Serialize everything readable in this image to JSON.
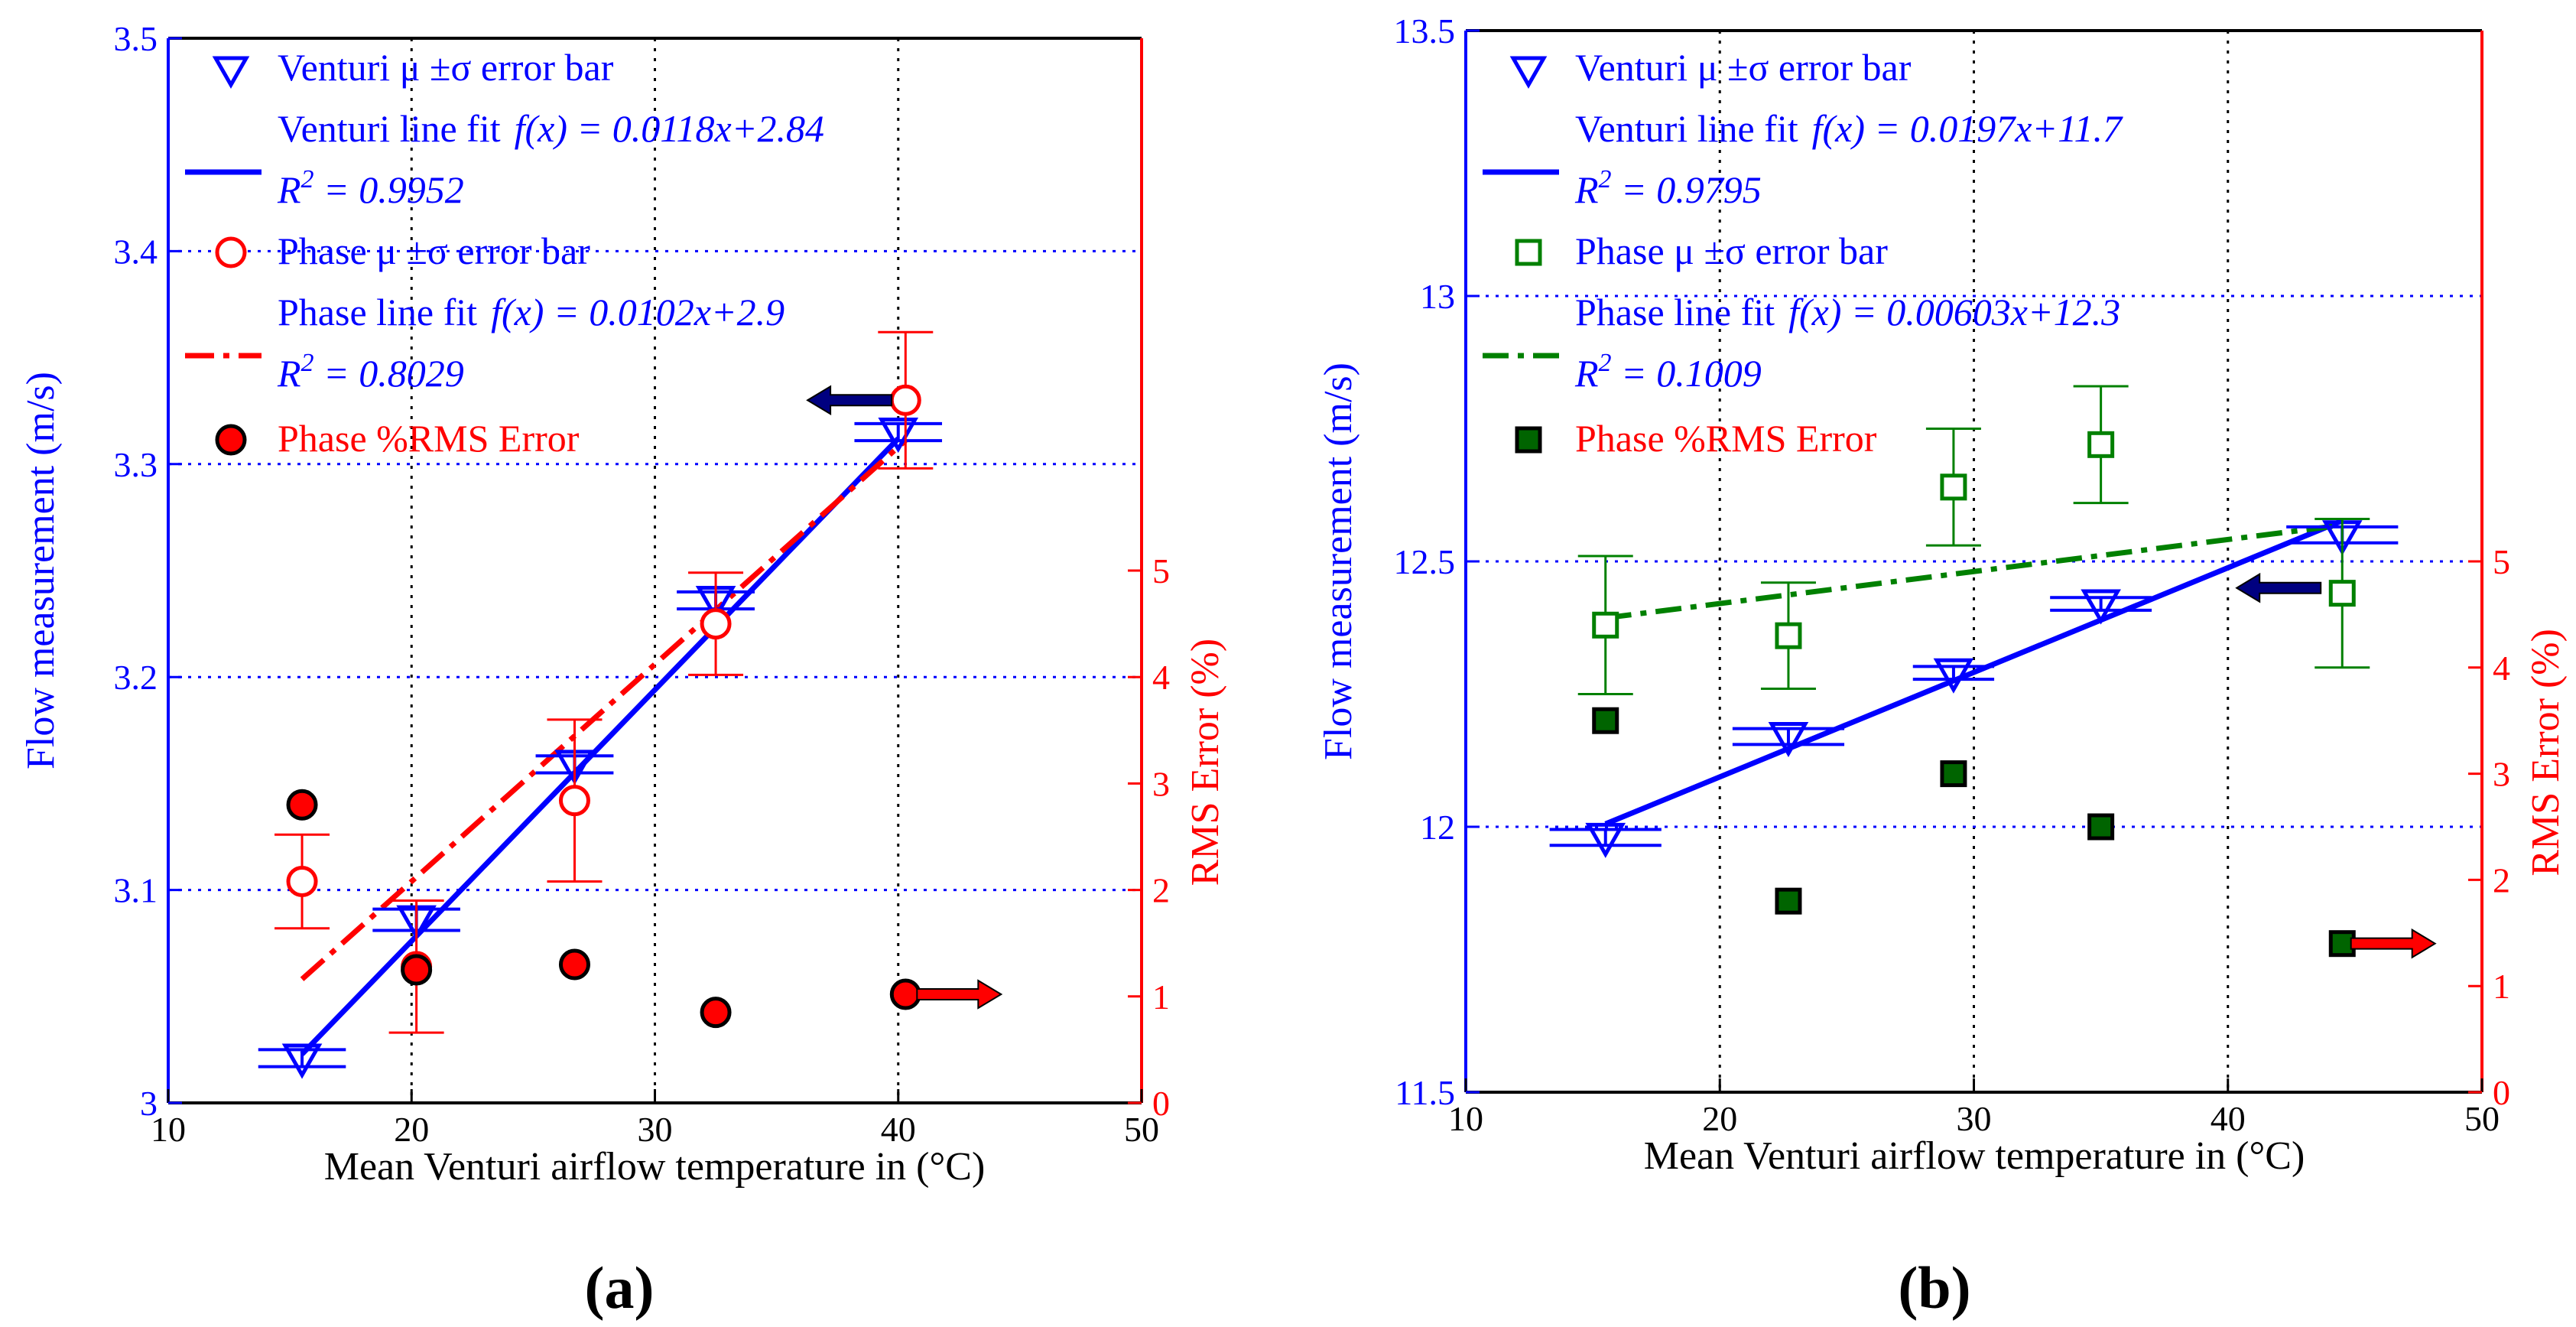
{
  "colors": {
    "venturi": "#0000ff",
    "phase_a": "#ff0000",
    "phase_b": "#008000",
    "rms_a_fill": "#ff0000",
    "rms_b_fill": "#006400",
    "rms_axis": "#ff0000",
    "grid": "#0000ff",
    "arrow_left": "#000080",
    "arrow_right": "#ff0000"
  },
  "chart_data": [
    {
      "type": "scatter",
      "panel_label": "(a)",
      "xlabel": "Mean Venturi airflow temperature in (°C)",
      "ylabel": "Flow measurement (m/s)",
      "y2label": "RMS Error (%)",
      "xlim": [
        10,
        50
      ],
      "ylim": [
        3.0,
        3.5
      ],
      "y2lim": [
        0,
        10
      ],
      "xticks": [
        "10",
        "20",
        "30",
        "40",
        "50"
      ],
      "yticks": [
        "3",
        "3.1",
        "3.2",
        "3.3",
        "3.4",
        "3.5"
      ],
      "y2ticks": [
        "0",
        "1",
        "2",
        "3",
        "4",
        "5"
      ],
      "grid": "dotted",
      "venturi": {
        "name": "Venturi μ ±σ error bar",
        "marker": "triangle-down",
        "x": [
          15.5,
          20.2,
          26.7,
          32.5,
          40.0
        ],
        "mean": [
          3.021,
          3.086,
          3.159,
          3.236,
          3.315
        ],
        "xerr": [
          1.8,
          1.8,
          1.6,
          1.6,
          1.8
        ],
        "yerr": [
          0.004,
          0.005,
          0.004,
          0.004,
          0.004
        ]
      },
      "venturi_fit": {
        "line_label": "Venturi line fit",
        "equation": "f(x) = 0.0118x+2.84",
        "r2_base": "R",
        "r2_sup": "2",
        "r2_value": " = 0.9952",
        "slope": 0.0118,
        "intercept": 2.84,
        "x_range": [
          15.5,
          40.0
        ]
      },
      "phase": {
        "name": "Phase μ ±σ error bar",
        "marker": "circle",
        "x": [
          15.5,
          20.2,
          26.7,
          32.5,
          40.3
        ],
        "mean": [
          3.104,
          3.064,
          3.142,
          3.225,
          3.33
        ],
        "yerr": [
          0.022,
          0.031,
          0.038,
          0.024,
          0.032
        ]
      },
      "phase_fit": {
        "line_label": "Phase line fit",
        "equation": "f(x) = 0.0102x+2.9",
        "r2_base": "R",
        "r2_sup": "2",
        "r2_value": " = 0.8029",
        "slope": 0.0102,
        "intercept": 2.9,
        "x_range": [
          15.5,
          40.3
        ]
      },
      "rms": {
        "name": "Phase %RMS Error",
        "marker": "circle-filled",
        "x": [
          15.5,
          20.2,
          26.7,
          32.5,
          40.3
        ],
        "values": [
          2.8,
          1.25,
          1.3,
          0.85,
          1.02
        ]
      },
      "annotations": [
        {
          "type": "arrow-left",
          "x": 38.0,
          "axis": "left",
          "y": 3.33
        },
        {
          "type": "arrow-right",
          "x": 42.5,
          "axis": "right",
          "y": 1.02
        }
      ]
    },
    {
      "type": "scatter",
      "panel_label": "(b)",
      "xlabel": "Mean Venturi airflow temperature in (°C)",
      "ylabel": "Flow measurement (m/s)",
      "y2label": "RMS Error (%)",
      "xlim": [
        10,
        50
      ],
      "ylim": [
        11.5,
        13.5
      ],
      "y2lim": [
        0,
        10
      ],
      "xticks": [
        "10",
        "20",
        "30",
        "40",
        "50"
      ],
      "yticks": [
        "11.5",
        "12",
        "12.5",
        "13",
        "13.5"
      ],
      "y2ticks": [
        "0",
        "1",
        "2",
        "3",
        "4",
        "5"
      ],
      "grid": "dotted",
      "venturi": {
        "name": "Venturi μ ±σ error bar",
        "marker": "triangle-down",
        "x": [
          15.5,
          22.7,
          29.2,
          35.0,
          44.5
        ],
        "mean": [
          11.98,
          12.17,
          12.29,
          12.42,
          12.55
        ],
        "xerr": [
          2.2,
          2.2,
          1.6,
          2.0,
          2.2
        ],
        "yerr": [
          0.015,
          0.015,
          0.012,
          0.012,
          0.015
        ]
      },
      "venturi_fit": {
        "line_label": "Venturi line fit",
        "equation": "f(x) = 0.0197x+11.7",
        "r2_base": "R",
        "r2_sup": "2",
        "r2_value": " = 0.9795",
        "slope": 0.0197,
        "intercept": 11.7,
        "x_range": [
          15.5,
          44.5
        ]
      },
      "phase": {
        "name": "Phase μ ±σ error bar",
        "marker": "square",
        "x": [
          15.5,
          22.7,
          29.2,
          35.0,
          44.5
        ],
        "mean": [
          12.38,
          12.36,
          12.64,
          12.72,
          12.44
        ],
        "yerr": [
          0.13,
          0.1,
          0.11,
          0.11,
          0.14
        ]
      },
      "phase_fit": {
        "line_label": "Phase line fit",
        "equation": "f(x) = 0.00603x+12.3",
        "r2_base": "R",
        "r2_sup": "2",
        "r2_value": " = 0.1009",
        "slope": 0.00603,
        "intercept": 12.3,
        "x_range": [
          15.5,
          44.5
        ]
      },
      "rms": {
        "name": "Phase %RMS Error",
        "marker": "square-filled",
        "x": [
          15.5,
          22.7,
          29.2,
          35.0,
          44.5
        ],
        "values": [
          3.5,
          1.8,
          3.0,
          2.5,
          1.4
        ]
      },
      "annotations": [
        {
          "type": "arrow-left",
          "x": 42.0,
          "axis": "left",
          "y": 12.45
        },
        {
          "type": "arrow-right",
          "x": 46.5,
          "axis": "right",
          "y": 1.4
        }
      ]
    }
  ]
}
